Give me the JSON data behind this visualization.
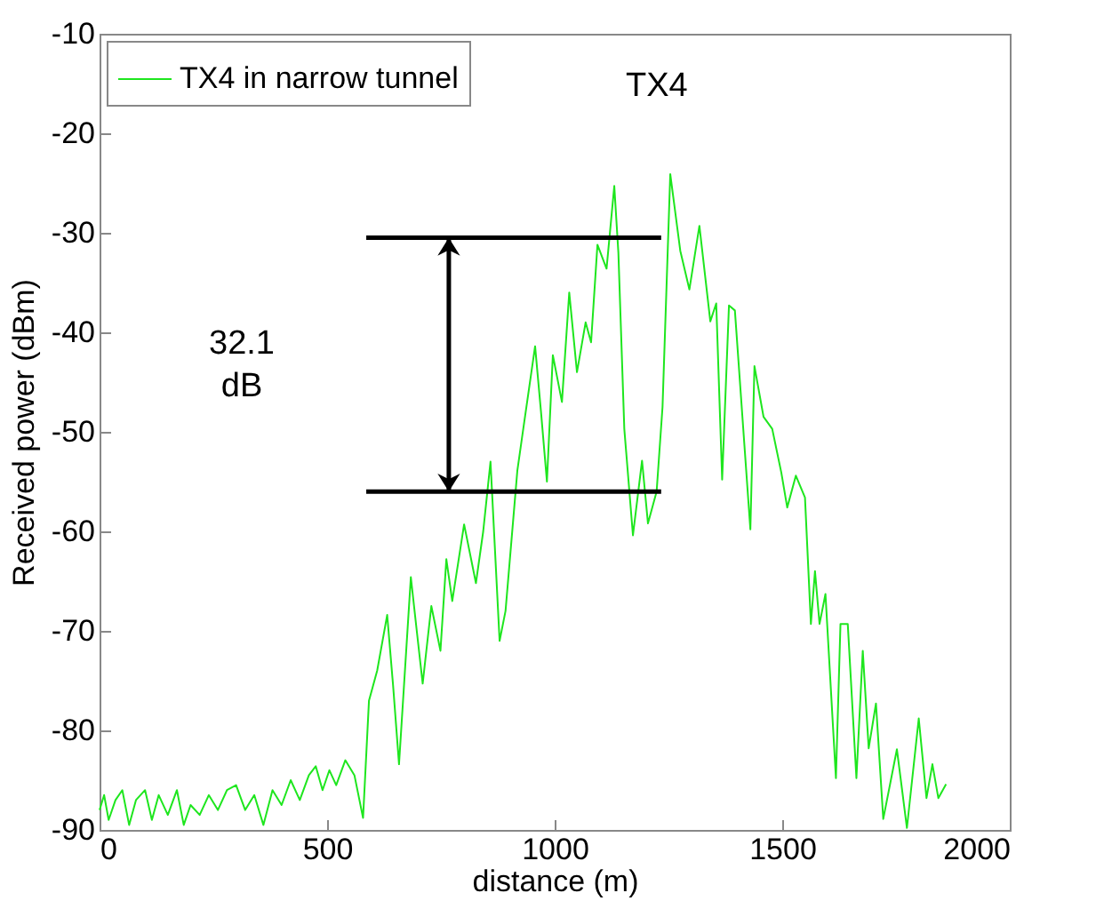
{
  "chart_data": {
    "type": "line",
    "xlabel": "distance (m)",
    "ylabel": "Received power (dBm)",
    "xlim": [
      0,
      2000
    ],
    "xticks": [
      0,
      500,
      1000,
      1500,
      2000
    ],
    "ylim": [
      -90,
      -10
    ],
    "yticks": [
      -90,
      -80,
      -70,
      -60,
      -50,
      -40,
      -30,
      -20,
      -10
    ],
    "legend": "top left",
    "grid": false,
    "line_style": "solid",
    "marker": "none",
    "annotations": [
      "TX4",
      "32.1 dB"
    ],
    "series": [
      {
        "name": "TX4 in narrow tunnel",
        "color": "#1ee61e",
        "x": [
          0,
          10,
          20,
          35,
          50,
          65,
          80,
          100,
          115,
          130,
          150,
          170,
          185,
          200,
          220,
          240,
          260,
          280,
          300,
          320,
          340,
          360,
          380,
          400,
          420,
          440,
          460,
          475,
          490,
          505,
          520,
          540,
          560,
          579,
          592,
          610,
          632,
          645,
          658,
          684,
          697,
          710,
          729,
          749,
          762,
          775,
          801,
          827,
          843,
          859,
          879,
          892,
          918,
          931,
          957,
          970,
          983,
          996,
          1016,
          1032,
          1049,
          1068,
          1080,
          1094,
          1114,
          1131,
          1140,
          1153,
          1172,
          1192,
          1205,
          1224,
          1237,
          1254,
          1276,
          1296,
          1318,
          1342,
          1355,
          1368,
          1383,
          1396,
          1430,
          1439,
          1459,
          1478,
          1498,
          1511,
          1530,
          1550,
          1563,
          1572,
          1582,
          1595,
          1618,
          1628,
          1644,
          1663,
          1677,
          1690,
          1706,
          1722,
          1752,
          1774,
          1800,
          1817,
          1830,
          1843,
          1860
        ],
        "values": [
          -88,
          -86.5,
          -89,
          -87,
          -86,
          -89.5,
          -87,
          -86,
          -89,
          -86.5,
          -88.5,
          -86,
          -89.5,
          -87.5,
          -88.5,
          -86.5,
          -88,
          -86,
          -85.5,
          -88,
          -86.5,
          -89.5,
          -86,
          -87.5,
          -85,
          -87,
          -84.5,
          -83.6,
          -86,
          -84,
          -85.5,
          -83,
          -84.5,
          -88.8,
          -77,
          -74,
          -68.4,
          -75.5,
          -83.4,
          -64.6,
          -70,
          -75.3,
          -67.5,
          -72,
          -62.8,
          -67,
          -59.3,
          -65.2,
          -60,
          -53,
          -71,
          -68,
          -53.9,
          -49.7,
          -41.4,
          -48,
          -55,
          -42.3,
          -47,
          -36,
          -44,
          -39,
          -41,
          -31.2,
          -33.6,
          -25.3,
          -32,
          -49.7,
          -60.4,
          -52.9,
          -59.2,
          -56,
          -47.5,
          -24.1,
          -31.8,
          -35.7,
          -29.3,
          -38.9,
          -37.1,
          -54.8,
          -37.3,
          -37.8,
          -59.8,
          -43.4,
          -48.5,
          -49.7,
          -54.1,
          -57.6,
          -54.4,
          -56.6,
          -69.3,
          -64,
          -69.3,
          -66.3,
          -84.8,
          -69.3,
          -69.3,
          -84.8,
          -72,
          -81.8,
          -77.3,
          -88.9,
          -81.9,
          -89.8,
          -78.8,
          -86.8,
          -83.4,
          -86.8,
          -85.4
        ]
      },
      {
        "color": "#000000",
        "x": [
          586,
          1234
        ],
        "values": [
          -30.5,
          -30.5
        ]
      },
      {
        "color": "#000000",
        "x": [
          586,
          1234
        ],
        "values": [
          -56,
          -56
        ]
      }
    ]
  }
}
